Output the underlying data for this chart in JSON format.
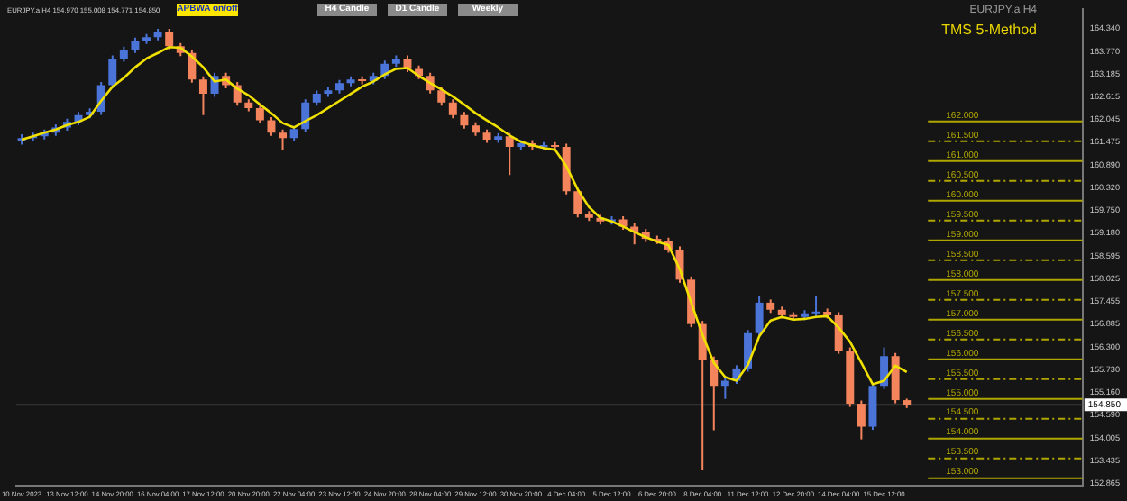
{
  "chart_data": {
    "type": "candlestick",
    "title": "EURJPY.a H4",
    "subtitle": "TMS 5-Method",
    "annotations": [
      "EURJPY.a,H4  154.970 155.008 154.771 154.850",
      "APBWA on/off",
      "H4 Candle",
      "D1 Candle",
      "Weekly"
    ],
    "categories": [
      "10 Nov 2023",
      null,
      null,
      null,
      "13 Nov 12:00",
      null,
      null,
      null,
      "14 Nov 20:00",
      null,
      null,
      null,
      "16 Nov 04:00",
      null,
      null,
      null,
      "17 Nov 12:00",
      null,
      null,
      null,
      "20 Nov 20:00",
      null,
      null,
      null,
      "22 Nov 04:00",
      null,
      null,
      null,
      "23 Nov 12:00",
      null,
      null,
      null,
      "24 Nov 20:00",
      null,
      null,
      null,
      "28 Nov 04:00",
      null,
      null,
      null,
      "29 Nov 12:00",
      null,
      null,
      null,
      "30 Nov 20:00",
      null,
      null,
      null,
      "4 Dec 04:00",
      null,
      null,
      null,
      "5 Dec 12:00",
      null,
      null,
      null,
      "6 Dec 20:00",
      null,
      null,
      null,
      "8 Dec 04:00",
      null,
      null,
      null,
      "11 Dec 12:00",
      null,
      null,
      null,
      "12 Dec 20:00",
      null,
      null,
      null,
      "14 Dec 04:00",
      null,
      null,
      null,
      "15 Dec 12:00",
      null,
      null,
      null,
      null,
      null,
      null,
      null,
      null,
      null,
      null,
      null,
      null,
      null,
      null,
      null,
      null,
      null
    ],
    "ohlc": [
      [
        161.5,
        161.68,
        161.42,
        161.58
      ],
      [
        161.58,
        161.72,
        161.5,
        161.63
      ],
      [
        161.63,
        161.8,
        161.55,
        161.72
      ],
      [
        161.72,
        161.93,
        161.64,
        161.85
      ],
      [
        161.85,
        162.07,
        161.77,
        161.99
      ],
      [
        161.99,
        162.24,
        161.91,
        162.16
      ],
      [
        162.16,
        162.33,
        162.08,
        162.25
      ],
      [
        162.25,
        163.0,
        162.17,
        162.92
      ],
      [
        162.92,
        163.67,
        162.84,
        163.59
      ],
      [
        163.59,
        163.89,
        163.51,
        163.81
      ],
      [
        163.81,
        164.12,
        163.73,
        164.04
      ],
      [
        164.04,
        164.21,
        163.96,
        164.13
      ],
      [
        164.13,
        164.34,
        164.05,
        164.26
      ],
      [
        164.26,
        164.34,
        163.82,
        163.9
      ],
      [
        163.9,
        163.98,
        163.65,
        163.73
      ],
      [
        163.73,
        163.81,
        162.98,
        163.06
      ],
      [
        163.06,
        163.14,
        162.16,
        162.7
      ],
      [
        162.7,
        163.23,
        162.62,
        163.15
      ],
      [
        163.15,
        163.23,
        162.84,
        162.92
      ],
      [
        162.92,
        163.0,
        162.4,
        162.48
      ],
      [
        162.48,
        162.56,
        162.26,
        162.34
      ],
      [
        162.34,
        162.42,
        161.95,
        162.03
      ],
      [
        162.03,
        162.11,
        161.64,
        161.72
      ],
      [
        161.72,
        161.8,
        161.27,
        161.58
      ],
      [
        161.58,
        161.89,
        161.5,
        161.81
      ],
      [
        161.81,
        162.56,
        161.73,
        162.48
      ],
      [
        162.48,
        162.78,
        162.4,
        162.7
      ],
      [
        162.7,
        162.87,
        162.62,
        162.79
      ],
      [
        162.79,
        163.05,
        162.71,
        162.97
      ],
      [
        162.97,
        163.14,
        162.89,
        163.06
      ],
      [
        163.06,
        163.14,
        162.94,
        163.02
      ],
      [
        163.02,
        163.23,
        162.94,
        163.15
      ],
      [
        163.15,
        163.54,
        163.07,
        163.46
      ],
      [
        163.46,
        163.67,
        163.38,
        163.59
      ],
      [
        163.59,
        163.67,
        163.25,
        163.33
      ],
      [
        163.33,
        163.41,
        163.07,
        163.15
      ],
      [
        163.15,
        163.23,
        162.71,
        162.79
      ],
      [
        162.79,
        162.87,
        162.4,
        162.48
      ],
      [
        162.48,
        162.56,
        162.08,
        162.16
      ],
      [
        162.16,
        162.24,
        161.82,
        161.9
      ],
      [
        161.9,
        161.98,
        161.64,
        161.72
      ],
      [
        161.72,
        161.8,
        161.46,
        161.54
      ],
      [
        161.54,
        161.71,
        161.46,
        161.63
      ],
      [
        161.63,
        161.71,
        160.65,
        161.36
      ],
      [
        161.36,
        161.53,
        161.28,
        161.45
      ],
      [
        161.45,
        161.53,
        161.28,
        161.36
      ],
      [
        161.36,
        161.48,
        161.28,
        161.4
      ],
      [
        161.4,
        161.48,
        161.28,
        161.36
      ],
      [
        161.36,
        161.44,
        160.16,
        160.24
      ],
      [
        160.24,
        160.32,
        159.58,
        159.66
      ],
      [
        159.66,
        159.74,
        159.49,
        159.57
      ],
      [
        159.57,
        159.65,
        159.4,
        159.48
      ],
      [
        159.48,
        159.61,
        159.4,
        159.53
      ],
      [
        159.53,
        159.61,
        159.27,
        159.35
      ],
      [
        159.35,
        159.43,
        158.9,
        159.21
      ],
      [
        159.21,
        159.29,
        158.96,
        159.04
      ],
      [
        159.04,
        159.12,
        158.91,
        158.99
      ],
      [
        158.99,
        159.07,
        158.69,
        158.77
      ],
      [
        158.77,
        158.85,
        157.93,
        158.01
      ],
      [
        158.01,
        158.09,
        156.81,
        156.89
      ],
      [
        156.89,
        156.97,
        153.2,
        155.99
      ],
      [
        155.99,
        156.07,
        154.21,
        155.33
      ],
      [
        155.33,
        155.54,
        155.0,
        155.46
      ],
      [
        155.46,
        155.85,
        155.38,
        155.77
      ],
      [
        155.77,
        156.74,
        155.69,
        156.66
      ],
      [
        156.66,
        157.6,
        156.58,
        157.43
      ],
      [
        157.43,
        157.51,
        157.17,
        157.25
      ],
      [
        157.25,
        157.33,
        157.03,
        157.11
      ],
      [
        157.11,
        157.19,
        156.99,
        157.07
      ],
      [
        157.07,
        157.24,
        156.99,
        157.16
      ],
      [
        157.16,
        157.6,
        157.08,
        157.2
      ],
      [
        157.2,
        157.28,
        157.03,
        157.11
      ],
      [
        157.11,
        157.19,
        156.14,
        156.22
      ],
      [
        156.22,
        156.3,
        154.8,
        154.88
      ],
      [
        154.88,
        154.96,
        153.98,
        154.3
      ],
      [
        154.3,
        155.41,
        154.22,
        155.33
      ],
      [
        155.33,
        156.3,
        155.25,
        156.08
      ],
      [
        156.08,
        156.16,
        154.89,
        154.97
      ],
      [
        154.97,
        155.008,
        154.771,
        154.85
      ],
      null,
      null,
      null,
      null,
      null,
      null,
      null,
      null,
      null,
      null,
      null,
      null,
      null,
      null,
      null
    ],
    "colors": [
      "#4b74d9",
      "#4b74d9",
      "#4b74d9",
      "#4b74d9",
      "#4b74d9",
      "#4b74d9",
      "#4b74d9",
      "#4b74d9",
      "#4b74d9",
      "#4b74d9",
      "#4b74d9",
      "#4b74d9",
      "#4b74d9",
      "#f4845c",
      "#f4845c",
      "#f4845c",
      "#f4845c",
      "#4b74d9",
      "#f4845c",
      "#f4845c",
      "#f4845c",
      "#f4845c",
      "#f4845c",
      "#f4845c",
      "#4b74d9",
      "#4b74d9",
      "#4b74d9",
      "#4b74d9",
      "#4b74d9",
      "#4b74d9",
      "#f4845c",
      "#4b74d9",
      "#4b74d9",
      "#4b74d9",
      "#f4845c",
      "#f4845c",
      "#f4845c",
      "#f4845c",
      "#f4845c",
      "#f4845c",
      "#f4845c",
      "#f4845c",
      "#4b74d9",
      "#f4845c",
      "#4b74d9",
      "#f4845c",
      "#4b74d9",
      "#f4845c",
      "#f4845c",
      "#f4845c",
      "#f4845c",
      "#f4845c",
      "#4b74d9",
      "#f4845c",
      "#f4845c",
      "#f4845c",
      "#f4845c",
      "#f4845c",
      "#f4845c",
      "#f4845c",
      "#f4845c",
      "#f4845c",
      "#4b74d9",
      "#4b74d9",
      "#4b74d9",
      "#4b74d9",
      "#f4845c",
      "#f4845c",
      "#f4845c",
      "#4b74d9",
      "#4b74d9",
      "#f4845c",
      "#f4845c",
      "#f4845c",
      "#f4845c",
      "#4b74d9",
      "#4b74d9",
      "#f4845c",
      "#f4845c",
      null,
      null,
      null,
      null,
      null,
      null,
      null,
      null,
      null,
      null,
      null,
      null,
      null,
      null,
      null
    ],
    "series": [
      {
        "type": "line",
        "color": "#f0e000",
        "values": [
          161.54,
          161.63,
          161.72,
          161.8,
          161.91,
          161.99,
          162.12,
          162.52,
          162.88,
          163.1,
          163.37,
          163.59,
          163.73,
          163.88,
          163.86,
          163.64,
          163.37,
          163.01,
          163.06,
          162.83,
          162.66,
          162.43,
          162.21,
          161.96,
          161.85,
          162.01,
          162.16,
          162.34,
          162.52,
          162.7,
          162.88,
          163.01,
          163.19,
          163.33,
          163.35,
          163.15,
          162.97,
          162.81,
          162.63,
          162.43,
          162.21,
          162.03,
          161.85,
          161.65,
          161.49,
          161.4,
          161.33,
          161.29,
          160.87,
          160.29,
          159.84,
          159.57,
          159.48,
          159.35,
          159.21,
          159.08,
          158.97,
          158.88,
          158.27,
          157.43,
          156.62,
          155.91,
          155.55,
          155.46,
          155.86,
          156.58,
          156.98,
          157.07,
          157.0,
          157.02,
          157.07,
          157.09,
          156.8,
          156.44,
          155.91,
          155.37,
          155.46,
          155.84,
          155.68,
          null,
          null,
          null,
          null,
          null,
          null,
          null,
          null,
          null,
          null,
          null,
          null,
          null,
          null,
          null
        ]
      }
    ],
    "ylim": [
      152.82,
      164.85
    ],
    "yticks": [
      {
        "value": 164.34,
        "label": "164.340"
      },
      {
        "value": 163.77,
        "label": "163.770"
      },
      {
        "value": 163.185,
        "label": "163.185"
      },
      {
        "value": 162.615,
        "label": "162.615"
      },
      {
        "value": 162.045,
        "label": "162.045"
      },
      {
        "value": 161.475,
        "label": "161.475"
      },
      {
        "value": 160.89,
        "label": "160.890"
      },
      {
        "value": 160.32,
        "label": "160.320"
      },
      {
        "value": 159.75,
        "label": "159.750"
      },
      {
        "value": 159.18,
        "label": "159.180"
      },
      {
        "value": 158.595,
        "label": "158.595"
      },
      {
        "value": 158.025,
        "label": "158.025"
      },
      {
        "value": 157.455,
        "label": "157.455"
      },
      {
        "value": 156.885,
        "label": "156.885"
      },
      {
        "value": 156.3,
        "label": "156.300"
      },
      {
        "value": 155.73,
        "label": "155.730"
      },
      {
        "value": 155.16,
        "label": "155.160"
      },
      {
        "value": 154.59,
        "label": "154.590"
      },
      {
        "value": 154.005,
        "label": "154.005"
      },
      {
        "value": 153.435,
        "label": "153.435"
      },
      {
        "value": 152.865,
        "label": "152.865"
      }
    ],
    "ref_lines": [
      {
        "axis": "y",
        "value": 162,
        "label": "162.000",
        "color": "#b0a600",
        "line_style": "solid"
      },
      {
        "axis": "y",
        "value": 161.5,
        "label": "161.500",
        "color": "#b0a600",
        "line_style": "dashed"
      },
      {
        "axis": "y",
        "value": 161,
        "label": "161.000",
        "color": "#b0a600",
        "line_style": "solid"
      },
      {
        "axis": "y",
        "value": 160.5,
        "label": "160.500",
        "color": "#b0a600",
        "line_style": "dashed"
      },
      {
        "axis": "y",
        "value": 160,
        "label": "160.000",
        "color": "#b0a600",
        "line_style": "solid"
      },
      {
        "axis": "y",
        "value": 159.5,
        "label": "159.500",
        "color": "#b0a600",
        "line_style": "dashed"
      },
      {
        "axis": "y",
        "value": 159,
        "label": "159.000",
        "color": "#b0a600",
        "line_style": "solid"
      },
      {
        "axis": "y",
        "value": 158.5,
        "label": "158.500",
        "color": "#b0a600",
        "line_style": "dashed"
      },
      {
        "axis": "y",
        "value": 158,
        "label": "158.000",
        "color": "#b0a600",
        "line_style": "solid"
      },
      {
        "axis": "y",
        "value": 157.5,
        "label": "157.500",
        "color": "#b0a600",
        "line_style": "dashed"
      },
      {
        "axis": "y",
        "value": 157,
        "label": "157.000",
        "color": "#b0a600",
        "line_style": "solid"
      },
      {
        "axis": "y",
        "value": 156.5,
        "label": "156.500",
        "color": "#b0a600",
        "line_style": "dashed"
      },
      {
        "axis": "y",
        "value": 156,
        "label": "156.000",
        "color": "#b0a600",
        "line_style": "solid"
      },
      {
        "axis": "y",
        "value": 155.5,
        "label": "155.500",
        "color": "#b0a600",
        "line_style": "dashed"
      },
      {
        "axis": "y",
        "value": 155,
        "label": "155.000",
        "color": "#b0a600",
        "line_style": "solid"
      },
      {
        "axis": "y",
        "value": 154.5,
        "label": "154.500",
        "color": "#b0a600",
        "line_style": "dashed"
      },
      {
        "axis": "y",
        "value": 154,
        "label": "154.000",
        "color": "#b0a600",
        "line_style": "solid"
      },
      {
        "axis": "y",
        "value": 153.5,
        "label": "153.500",
        "color": "#b0a600",
        "line_style": "dashed"
      },
      {
        "axis": "y",
        "value": 153,
        "label": "153.000",
        "color": "#b0a600",
        "line_style": "solid"
      },
      {
        "axis": "y",
        "value": 154.85,
        "label": "154.850",
        "color": "#3a3a3a"
      }
    ]
  }
}
